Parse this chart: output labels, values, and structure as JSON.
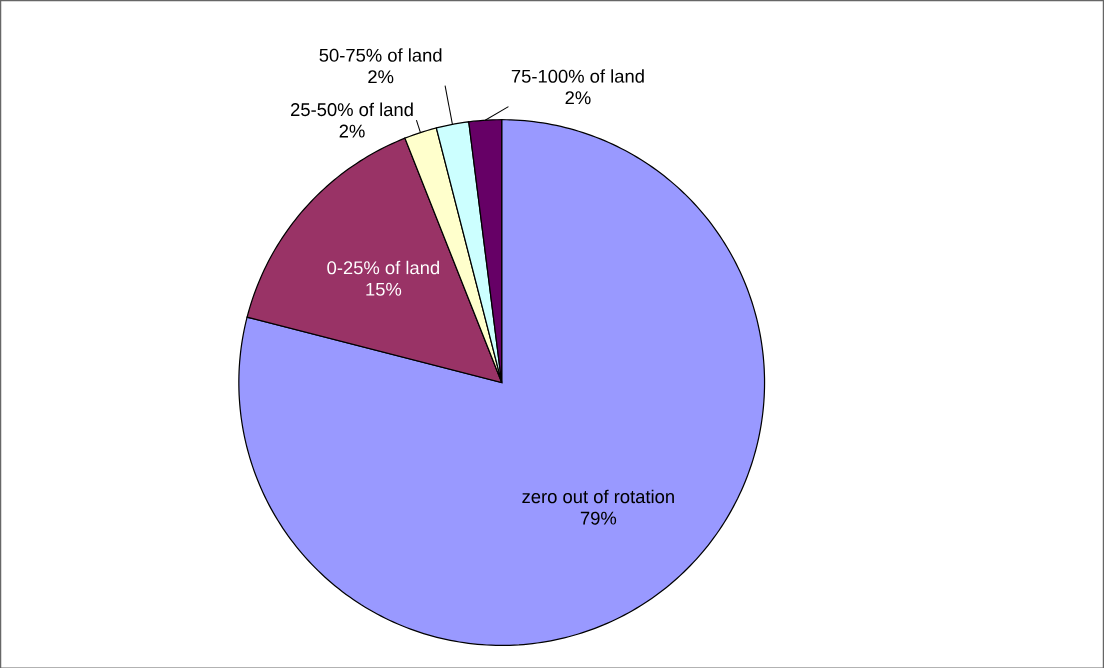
{
  "chart_data": {
    "type": "pie",
    "categories": [
      "zero out of rotation",
      "0-25% of land",
      "25-50% of land",
      "50-75% of land",
      "75-100% of land"
    ],
    "values": [
      79,
      15,
      2,
      2,
      2
    ],
    "value_labels": [
      "79%",
      "15%",
      "2%",
      "2%",
      "2%"
    ],
    "colors": [
      "#9999ff",
      "#993366",
      "#ffffcc",
      "#ccffff",
      "#660066"
    ]
  }
}
